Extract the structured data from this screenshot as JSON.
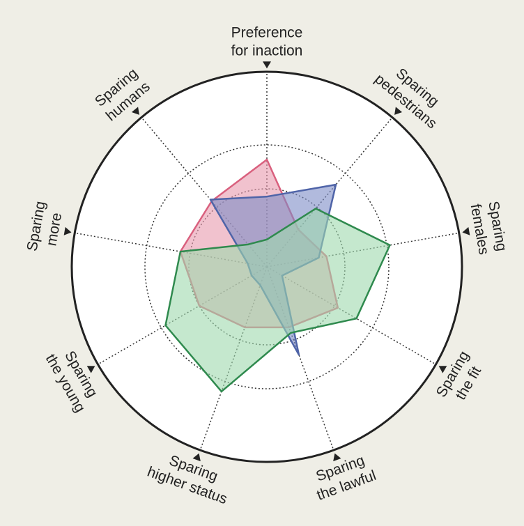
{
  "chart_data": {
    "type": "radar",
    "categories": [
      [
        "Preference",
        "for inaction"
      ],
      [
        "Sparing",
        "pedestrians"
      ],
      [
        "Sparing",
        "females"
      ],
      [
        "Sparing",
        "the fit"
      ],
      [
        "Sparing",
        "the lawful"
      ],
      [
        "Sparing",
        "higher status"
      ],
      [
        "Sparing",
        "the young"
      ],
      [
        "Sparing",
        "more"
      ],
      [
        "Sparing",
        "humans"
      ]
    ],
    "rlim": [
      0,
      1
    ],
    "rings": [
      0.4,
      0.625
    ],
    "series": [
      {
        "color": "#d9607e",
        "fill": "#e79aae",
        "values": [
          0.55,
          0.25,
          0.31,
          0.42,
          0.33,
          0.33,
          0.4,
          0.45,
          0.44
        ]
      },
      {
        "color": "#4f64a8",
        "fill": "#7d8cc6",
        "values": [
          0.36,
          0.55,
          0.27,
          0.09,
          0.48,
          0.1,
          0.09,
          0.1,
          0.45
        ]
      },
      {
        "color": "#2f8a4e",
        "fill": "#9fd8ae",
        "values": [
          0.14,
          0.39,
          0.64,
          0.53,
          0.36,
          0.68,
          0.6,
          0.45,
          0.15
        ]
      }
    ]
  }
}
